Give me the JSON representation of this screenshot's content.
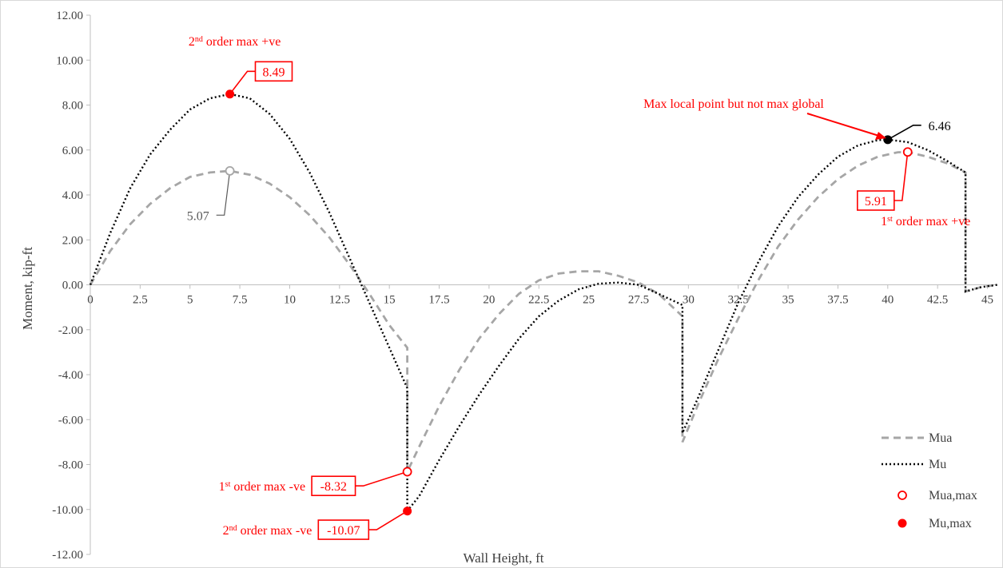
{
  "chart_data": {
    "type": "line",
    "xlabel": "Wall Height, ft",
    "ylabel": "Moment, kip-ft",
    "xlim": [
      0,
      45.5
    ],
    "ylim": [
      -12,
      12
    ],
    "x_ticks": [
      "0",
      "2.5",
      "5",
      "7.5",
      "10",
      "12.5",
      "15",
      "17.5",
      "20",
      "22.5",
      "25",
      "27.5",
      "30",
      "32.5",
      "35",
      "37.5",
      "40",
      "42.5",
      "45"
    ],
    "y_ticks": [
      "12.00",
      "10.00",
      "8.00",
      "6.00",
      "4.00",
      "2.00",
      "0.00",
      "-2.00",
      "-4.00",
      "-6.00",
      "-8.00",
      "-10.00",
      "-12.00"
    ],
    "legend_position": "bottom-right",
    "grid": false,
    "series": [
      {
        "name": "Mua",
        "style": "dashed",
        "color": "#a6a6a6",
        "points": [
          [
            0,
            0
          ],
          [
            1,
            1.5
          ],
          [
            2,
            2.7
          ],
          [
            3,
            3.6
          ],
          [
            4,
            4.3
          ],
          [
            5,
            4.8
          ],
          [
            6,
            5.0
          ],
          [
            7,
            5.07
          ],
          [
            8,
            4.9
          ],
          [
            9,
            4.5
          ],
          [
            10,
            3.9
          ],
          [
            11,
            3.1
          ],
          [
            12,
            2.1
          ],
          [
            13,
            0.9
          ],
          [
            14,
            -0.4
          ],
          [
            15,
            -1.8
          ],
          [
            15.9,
            -2.8
          ],
          [
            15.9,
            -8.32
          ],
          [
            16.5,
            -7.2
          ],
          [
            17.5,
            -5.4
          ],
          [
            18.5,
            -3.8
          ],
          [
            19.5,
            -2.4
          ],
          [
            20.5,
            -1.3
          ],
          [
            21.5,
            -0.4
          ],
          [
            22.5,
            0.2
          ],
          [
            23.5,
            0.5
          ],
          [
            24.5,
            0.6
          ],
          [
            25.5,
            0.6
          ],
          [
            26.5,
            0.4
          ],
          [
            27.5,
            0.1
          ],
          [
            28.5,
            -0.4
          ],
          [
            29.7,
            -1.4
          ],
          [
            29.7,
            -7.0
          ],
          [
            30.5,
            -5.3
          ],
          [
            31.5,
            -3.3
          ],
          [
            32.5,
            -1.5
          ],
          [
            33.5,
            0.2
          ],
          [
            34.5,
            1.7
          ],
          [
            35.5,
            2.9
          ],
          [
            36.5,
            3.9
          ],
          [
            37.5,
            4.7
          ],
          [
            38.5,
            5.3
          ],
          [
            39.5,
            5.7
          ],
          [
            40.5,
            5.9
          ],
          [
            41.0,
            5.91
          ],
          [
            42,
            5.7
          ],
          [
            43,
            5.4
          ],
          [
            43.9,
            5.0
          ],
          [
            43.9,
            -0.3
          ],
          [
            44.7,
            -0.1
          ],
          [
            45.5,
            0.0
          ]
        ]
      },
      {
        "name": "Mu",
        "style": "dotted",
        "color": "#000000",
        "points": [
          [
            0,
            0
          ],
          [
            1,
            2.3
          ],
          [
            2,
            4.3
          ],
          [
            3,
            5.8
          ],
          [
            4,
            6.9
          ],
          [
            5,
            7.8
          ],
          [
            6,
            8.3
          ],
          [
            7,
            8.49
          ],
          [
            8,
            8.3
          ],
          [
            9,
            7.6
          ],
          [
            10,
            6.5
          ],
          [
            11,
            5.0
          ],
          [
            12,
            3.2
          ],
          [
            13,
            1.2
          ],
          [
            14,
            -0.8
          ],
          [
            15,
            -2.8
          ],
          [
            15.9,
            -4.6
          ],
          [
            15.9,
            -10.07
          ],
          [
            16.5,
            -9.4
          ],
          [
            17.5,
            -7.8
          ],
          [
            18.5,
            -6.3
          ],
          [
            19.5,
            -4.9
          ],
          [
            20.5,
            -3.6
          ],
          [
            21.5,
            -2.4
          ],
          [
            22.5,
            -1.4
          ],
          [
            23.5,
            -0.7
          ],
          [
            24.5,
            -0.2
          ],
          [
            25.5,
            0.05
          ],
          [
            26.5,
            0.1
          ],
          [
            27.5,
            0.0
          ],
          [
            28.5,
            -0.4
          ],
          [
            29.7,
            -0.9
          ],
          [
            29.7,
            -6.6
          ],
          [
            30.5,
            -5.0
          ],
          [
            31.5,
            -2.9
          ],
          [
            32.5,
            -0.8
          ],
          [
            33.5,
            1.0
          ],
          [
            34.5,
            2.6
          ],
          [
            35.5,
            3.9
          ],
          [
            36.5,
            4.9
          ],
          [
            37.5,
            5.7
          ],
          [
            38.5,
            6.2
          ],
          [
            39.5,
            6.44
          ],
          [
            40.0,
            6.46
          ],
          [
            41,
            6.35
          ],
          [
            42,
            6.0
          ],
          [
            43,
            5.5
          ],
          [
            43.9,
            5.0
          ],
          [
            43.9,
            -0.3
          ],
          [
            44.7,
            -0.1
          ],
          [
            45.5,
            0.0
          ]
        ]
      },
      {
        "name": "Mua,max",
        "style": "open-marker",
        "points": [
          [
            15.9,
            -8.32
          ],
          [
            41.0,
            5.91
          ]
        ]
      },
      {
        "name": "Mu,max",
        "style": "filled-marker",
        "points": [
          [
            7,
            8.49
          ],
          [
            15.9,
            -10.07
          ]
        ]
      }
    ],
    "extra_points": [
      {
        "x": 7,
        "y": 5.07,
        "style": "open-grey"
      },
      {
        "x": 40.0,
        "y": 6.46,
        "style": "filled-black"
      }
    ],
    "annotations": [
      {
        "id": "a849",
        "value": "8.49",
        "boxed": true,
        "color": "#ff0000",
        "target": [
          7,
          8.49
        ],
        "box_at": [
          9.2,
          9.5
        ],
        "label": "order max +ve",
        "ordinal": "2",
        "sup": "nd"
      },
      {
        "id": "a507",
        "value": "5.07",
        "boxed": false,
        "color": "#595959",
        "target": [
          7,
          5.07
        ],
        "box_at": [
          5.4,
          3.1
        ]
      },
      {
        "id": "a832",
        "value": "-8.32",
        "boxed": true,
        "color": "#ff0000",
        "target": [
          15.9,
          -8.32
        ],
        "box_at": [
          12.2,
          -8.95
        ],
        "label": "order max -ve",
        "ordinal": "1",
        "sup": "st"
      },
      {
        "id": "a1007",
        "value": "-10.07",
        "boxed": true,
        "color": "#ff0000",
        "target": [
          15.9,
          -10.07
        ],
        "box_at": [
          12.7,
          -10.9
        ],
        "label": "order max -ve",
        "ordinal": "2",
        "sup": "nd"
      },
      {
        "id": "a646",
        "value": "6.46",
        "boxed": false,
        "color": "#000000",
        "target": [
          40.0,
          6.46
        ],
        "box_at": [
          42.6,
          7.1
        ]
      },
      {
        "id": "a591",
        "value": "5.91",
        "boxed": true,
        "color": "#ff0000",
        "target": [
          41.0,
          5.91
        ],
        "box_at": [
          39.4,
          3.75
        ],
        "label": "order max +ve",
        "ordinal": "1",
        "sup": "st"
      },
      {
        "id": "amax",
        "label": "Max local point but not max global",
        "color": "#ff0000",
        "target": [
          40.0,
          6.46
        ]
      }
    ]
  }
}
